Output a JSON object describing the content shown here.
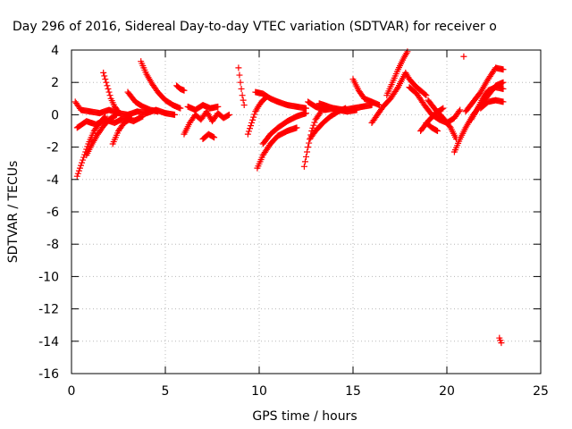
{
  "chart_data": {
    "type": "scatter",
    "title": "Day 296 of 2016, Sidereal Day-to-day VTEC variation (SDTVAR) for receiver o",
    "xlabel": "GPS time / hours",
    "ylabel": "SDTVAR / TECUs",
    "xlim": [
      0,
      25
    ],
    "ylim": [
      -16,
      4
    ],
    "xticks": [
      0,
      5,
      10,
      15,
      20,
      25
    ],
    "yticks": [
      -16,
      -14,
      -12,
      -10,
      -8,
      -6,
      -4,
      -2,
      0,
      2,
      4
    ],
    "grid": true,
    "marker": "+",
    "color": "#ff0000",
    "tracks": [
      [
        [
          0.2,
          0.8
        ],
        [
          0.5,
          0.3
        ],
        [
          1.0,
          0.2
        ],
        [
          1.5,
          0.1
        ],
        [
          2.0,
          0.3
        ],
        [
          2.5,
          0.1
        ],
        [
          3.0,
          0.0
        ],
        [
          3.5,
          0.2
        ],
        [
          4.0,
          0.1
        ],
        [
          4.5,
          0.3
        ],
        [
          5.0,
          0.1
        ],
        [
          5.5,
          0.0
        ]
      ],
      [
        [
          0.3,
          -0.8
        ],
        [
          0.8,
          -0.4
        ],
        [
          1.3,
          -0.6
        ],
        [
          1.8,
          -0.3
        ],
        [
          2.3,
          -0.5
        ],
        [
          2.8,
          -0.2
        ],
        [
          3.3,
          -0.4
        ],
        [
          3.8,
          -0.1
        ]
      ],
      [
        [
          0.3,
          -3.8
        ],
        [
          0.6,
          -2.8
        ],
        [
          0.9,
          -1.8
        ],
        [
          1.2,
          -1.0
        ],
        [
          1.5,
          -0.5
        ],
        [
          1.8,
          -0.1
        ]
      ],
      [
        [
          0.8,
          -2.5
        ],
        [
          1.1,
          -1.8
        ],
        [
          1.4,
          -1.2
        ],
        [
          1.7,
          -0.7
        ],
        [
          2.0,
          -0.3
        ],
        [
          2.4,
          0.0
        ]
      ],
      [
        [
          1.7,
          2.6
        ],
        [
          1.9,
          1.8
        ],
        [
          2.1,
          1.0
        ],
        [
          2.3,
          0.5
        ],
        [
          2.5,
          0.2
        ]
      ],
      [
        [
          2.2,
          -1.8
        ],
        [
          2.5,
          -1.0
        ],
        [
          2.8,
          -0.5
        ],
        [
          3.2,
          -0.2
        ]
      ],
      [
        [
          3.0,
          1.4
        ],
        [
          3.4,
          0.8
        ],
        [
          3.8,
          0.5
        ],
        [
          4.2,
          0.3
        ],
        [
          4.6,
          0.2
        ]
      ],
      [
        [
          3.7,
          3.3
        ],
        [
          4.0,
          2.5
        ],
        [
          4.3,
          1.9
        ],
        [
          4.6,
          1.4
        ],
        [
          5.0,
          0.9
        ],
        [
          5.4,
          0.6
        ],
        [
          5.8,
          0.4
        ]
      ],
      [
        [
          5.6,
          1.8
        ],
        [
          5.8,
          1.6
        ],
        [
          6.0,
          1.5
        ]
      ],
      [
        [
          6.0,
          -1.2
        ],
        [
          6.3,
          -0.5
        ],
        [
          6.6,
          0.0
        ],
        [
          6.9,
          -0.3
        ],
        [
          7.2,
          0.2
        ],
        [
          7.5,
          -0.4
        ],
        [
          7.8,
          0.1
        ],
        [
          8.1,
          -0.2
        ],
        [
          8.4,
          0.0
        ]
      ],
      [
        [
          7.0,
          -1.5
        ],
        [
          7.3,
          -1.2
        ],
        [
          7.6,
          -1.4
        ]
      ],
      [
        [
          6.2,
          0.5
        ],
        [
          6.6,
          0.3
        ],
        [
          7.0,
          0.6
        ],
        [
          7.4,
          0.4
        ],
        [
          7.8,
          0.5
        ]
      ],
      [
        [
          8.9,
          2.9
        ],
        [
          9.0,
          2.0
        ],
        [
          9.1,
          1.2
        ],
        [
          9.2,
          0.6
        ]
      ],
      [
        [
          9.4,
          -1.2
        ],
        [
          9.6,
          -0.5
        ],
        [
          9.8,
          0.2
        ],
        [
          10.0,
          0.6
        ],
        [
          10.2,
          0.9
        ],
        [
          10.4,
          1.1
        ]
      ],
      [
        [
          9.9,
          -3.3
        ],
        [
          10.2,
          -2.5
        ],
        [
          10.6,
          -1.8
        ],
        [
          11.0,
          -1.3
        ],
        [
          11.5,
          -1.0
        ],
        [
          12.0,
          -0.8
        ]
      ],
      [
        [
          10.2,
          -1.8
        ],
        [
          10.6,
          -1.2
        ],
        [
          11.0,
          -0.8
        ],
        [
          11.5,
          -0.4
        ],
        [
          12.0,
          -0.1
        ],
        [
          12.5,
          0.1
        ]
      ],
      [
        [
          9.8,
          1.4
        ],
        [
          10.2,
          1.3
        ],
        [
          10.6,
          1.0
        ],
        [
          11.0,
          0.8
        ],
        [
          11.5,
          0.6
        ],
        [
          12.0,
          0.5
        ],
        [
          12.5,
          0.4
        ]
      ],
      [
        [
          12.4,
          -3.2
        ],
        [
          12.6,
          -2.0
        ],
        [
          12.8,
          -1.0
        ],
        [
          13.0,
          -0.3
        ],
        [
          13.3,
          0.2
        ]
      ],
      [
        [
          12.7,
          -1.5
        ],
        [
          13.0,
          -1.0
        ],
        [
          13.4,
          -0.5
        ],
        [
          13.8,
          -0.1
        ],
        [
          14.2,
          0.2
        ],
        [
          14.6,
          0.4
        ]
      ],
      [
        [
          12.6,
          0.8
        ],
        [
          13.0,
          0.5
        ],
        [
          13.5,
          0.3
        ],
        [
          14.0,
          0.4
        ],
        [
          14.5,
          0.3
        ],
        [
          15.0,
          0.4
        ],
        [
          15.5,
          0.5
        ],
        [
          16.0,
          0.6
        ]
      ],
      [
        [
          13.2,
          0.7
        ],
        [
          13.7,
          0.5
        ],
        [
          14.2,
          0.3
        ],
        [
          14.7,
          0.2
        ],
        [
          15.2,
          0.3
        ]
      ],
      [
        [
          15.0,
          2.2
        ],
        [
          15.3,
          1.5
        ],
        [
          15.6,
          1.0
        ],
        [
          16.0,
          0.8
        ],
        [
          16.4,
          0.6
        ]
      ],
      [
        [
          16.0,
          -0.5
        ],
        [
          16.3,
          0.0
        ],
        [
          16.6,
          0.5
        ],
        [
          17.0,
          1.0
        ],
        [
          17.4,
          1.7
        ],
        [
          17.8,
          2.6
        ],
        [
          18.0,
          2.2
        ],
        [
          18.3,
          1.8
        ],
        [
          18.6,
          1.5
        ],
        [
          18.9,
          1.2
        ]
      ],
      [
        [
          16.8,
          1.2
        ],
        [
          17.1,
          2.0
        ],
        [
          17.4,
          2.8
        ],
        [
          17.7,
          3.5
        ],
        [
          17.9,
          3.9
        ]
      ],
      [
        [
          18.0,
          1.7
        ],
        [
          18.4,
          1.3
        ],
        [
          18.8,
          0.6
        ],
        [
          19.2,
          0.0
        ],
        [
          19.6,
          -0.3
        ],
        [
          20.0,
          -0.5
        ],
        [
          20.4,
          -0.2
        ],
        [
          20.7,
          0.3
        ]
      ],
      [
        [
          18.6,
          -1.0
        ],
        [
          19.0,
          -0.4
        ],
        [
          19.4,
          0.1
        ],
        [
          19.8,
          0.4
        ]
      ],
      [
        [
          18.9,
          -0.5
        ],
        [
          19.2,
          -0.8
        ],
        [
          19.5,
          -1.0
        ]
      ],
      [
        [
          19.0,
          0.9
        ],
        [
          19.4,
          0.3
        ],
        [
          19.8,
          -0.2
        ],
        [
          20.2,
          -0.8
        ],
        [
          20.5,
          -1.5
        ]
      ],
      [
        [
          20.4,
          -2.3
        ],
        [
          20.7,
          -1.5
        ],
        [
          21.0,
          -0.8
        ],
        [
          21.4,
          0.0
        ],
        [
          21.8,
          0.6
        ],
        [
          22.2,
          1.2
        ],
        [
          22.6,
          1.8
        ],
        [
          23.0,
          2.0
        ]
      ],
      [
        [
          21.0,
          0.2
        ],
        [
          21.4,
          0.8
        ],
        [
          21.8,
          1.4
        ],
        [
          22.2,
          2.2
        ],
        [
          22.6,
          2.9
        ],
        [
          23.0,
          2.8
        ]
      ],
      [
        [
          21.3,
          -0.3
        ],
        [
          21.6,
          0.3
        ],
        [
          21.9,
          1.0
        ],
        [
          22.2,
          1.5
        ],
        [
          22.6,
          1.7
        ],
        [
          23.0,
          1.6
        ]
      ],
      [
        [
          21.8,
          0.4
        ],
        [
          22.2,
          0.8
        ],
        [
          22.6,
          0.9
        ],
        [
          23.0,
          0.8
        ]
      ],
      [
        [
          20.9,
          3.6
        ]
      ],
      [
        [
          22.8,
          -13.8
        ],
        [
          22.9,
          -14.1
        ]
      ]
    ]
  }
}
